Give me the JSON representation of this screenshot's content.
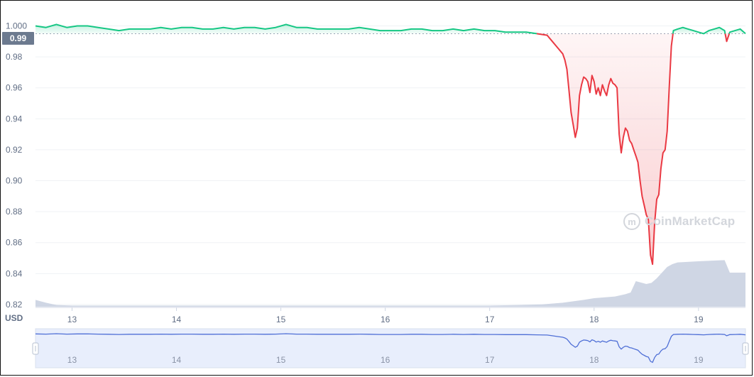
{
  "chart_data": {
    "type": "line",
    "currency_label": "USD",
    "current_price": "0.99",
    "reference_price": 0.995,
    "yticks": [
      "1.000",
      "0.98",
      "0.96",
      "0.94",
      "0.92",
      "0.90",
      "0.88",
      "0.86",
      "0.84",
      "0.82"
    ],
    "xticks": [
      "13",
      "14",
      "15",
      "16",
      "17",
      "18",
      "19"
    ],
    "x_range_days": [
      12.65,
      19.45
    ],
    "ylim": [
      0.8195,
      1.003
    ],
    "price_series": {
      "x": [
        12.65,
        12.75,
        12.85,
        12.95,
        13.05,
        13.15,
        13.25,
        13.35,
        13.45,
        13.55,
        13.65,
        13.75,
        13.85,
        13.95,
        14.05,
        14.15,
        14.25,
        14.35,
        14.45,
        14.55,
        14.65,
        14.75,
        14.85,
        14.95,
        15.05,
        15.15,
        15.25,
        15.35,
        15.45,
        15.55,
        15.65,
        15.75,
        15.85,
        15.95,
        16.05,
        16.15,
        16.25,
        16.35,
        16.45,
        16.55,
        16.65,
        16.75,
        16.85,
        16.95,
        17.05,
        17.15,
        17.25,
        17.35,
        17.45,
        17.55,
        17.6,
        17.65,
        17.7,
        17.72,
        17.74,
        17.76,
        17.78,
        17.8,
        17.82,
        17.84,
        17.86,
        17.88,
        17.9,
        17.92,
        17.94,
        17.96,
        17.98,
        18.0,
        18.02,
        18.04,
        18.06,
        18.08,
        18.1,
        18.12,
        18.14,
        18.16,
        18.18,
        18.2,
        18.22,
        18.24,
        18.26,
        18.28,
        18.3,
        18.32,
        18.34,
        18.36,
        18.38,
        18.4,
        18.42,
        18.44,
        18.46,
        18.48,
        18.5,
        18.52,
        18.54,
        18.56,
        18.58,
        18.6,
        18.62,
        18.64,
        18.66,
        18.68,
        18.7,
        18.72,
        18.74,
        18.76,
        18.8,
        18.85,
        18.9,
        18.95,
        19.0,
        19.05,
        19.1,
        19.15,
        19.2,
        19.25,
        19.27,
        19.3,
        19.35,
        19.4,
        19.45
      ],
      "y": [
        1.0,
        0.999,
        1.001,
        0.999,
        1.0,
        1.0,
        0.999,
        0.998,
        0.997,
        0.998,
        0.998,
        0.998,
        0.999,
        0.998,
        0.999,
        0.999,
        0.998,
        0.998,
        0.999,
        0.998,
        0.999,
        0.999,
        0.998,
        0.999,
        1.001,
        0.999,
        0.999,
        0.998,
        0.998,
        0.998,
        0.998,
        0.999,
        0.998,
        0.997,
        0.997,
        0.997,
        0.998,
        0.998,
        0.997,
        0.997,
        0.998,
        0.997,
        0.998,
        0.997,
        0.997,
        0.996,
        0.996,
        0.996,
        0.995,
        0.994,
        0.99,
        0.986,
        0.982,
        0.978,
        0.972,
        0.958,
        0.944,
        0.936,
        0.928,
        0.934,
        0.955,
        0.962,
        0.967,
        0.966,
        0.964,
        0.957,
        0.968,
        0.964,
        0.956,
        0.96,
        0.955,
        0.962,
        0.958,
        0.955,
        0.962,
        0.966,
        0.963,
        0.962,
        0.96,
        0.93,
        0.918,
        0.928,
        0.934,
        0.932,
        0.926,
        0.924,
        0.92,
        0.916,
        0.912,
        0.9,
        0.89,
        0.884,
        0.878,
        0.875,
        0.852,
        0.846,
        0.873,
        0.888,
        0.891,
        0.908,
        0.918,
        0.92,
        0.932,
        0.96,
        0.987,
        0.997,
        0.998,
        0.999,
        0.998,
        0.997,
        0.996,
        0.995,
        0.997,
        0.998,
        0.999,
        0.997,
        0.99,
        0.996,
        0.997,
        0.998,
        0.995
      ]
    },
    "volume_series": {
      "x": [
        12.65,
        12.75,
        12.85,
        13.0,
        13.5,
        14.0,
        14.5,
        15.0,
        15.5,
        16.0,
        16.5,
        17.0,
        17.3,
        17.5,
        17.7,
        17.9,
        18.0,
        18.2,
        18.3,
        18.35,
        18.4,
        18.5,
        18.55,
        18.6,
        18.7,
        18.75,
        18.8,
        19.0,
        19.25,
        19.3,
        19.45
      ],
      "y": [
        0.12,
        0.07,
        0.03,
        0.02,
        0.02,
        0.02,
        0.02,
        0.02,
        0.02,
        0.02,
        0.02,
        0.02,
        0.03,
        0.04,
        0.07,
        0.12,
        0.15,
        0.18,
        0.22,
        0.25,
        0.45,
        0.4,
        0.42,
        0.5,
        0.7,
        0.75,
        0.78,
        0.8,
        0.82,
        0.6,
        0.6
      ]
    },
    "navigator_labels": [
      "13",
      "14",
      "15",
      "16",
      "17",
      "18",
      "19"
    ]
  },
  "watermark": {
    "text": "CoinMarketCap",
    "icon": "coinmarketcap-logo-icon"
  },
  "colors": {
    "up": "#16c784",
    "down": "#ea3943",
    "axis_text": "#616e85",
    "grid": "#eff2f5",
    "volume": "#cfd6e4",
    "navigator_line": "#4f6fd6",
    "navigator_fill": "#e8eefc",
    "badge": "#6c7a8f"
  }
}
